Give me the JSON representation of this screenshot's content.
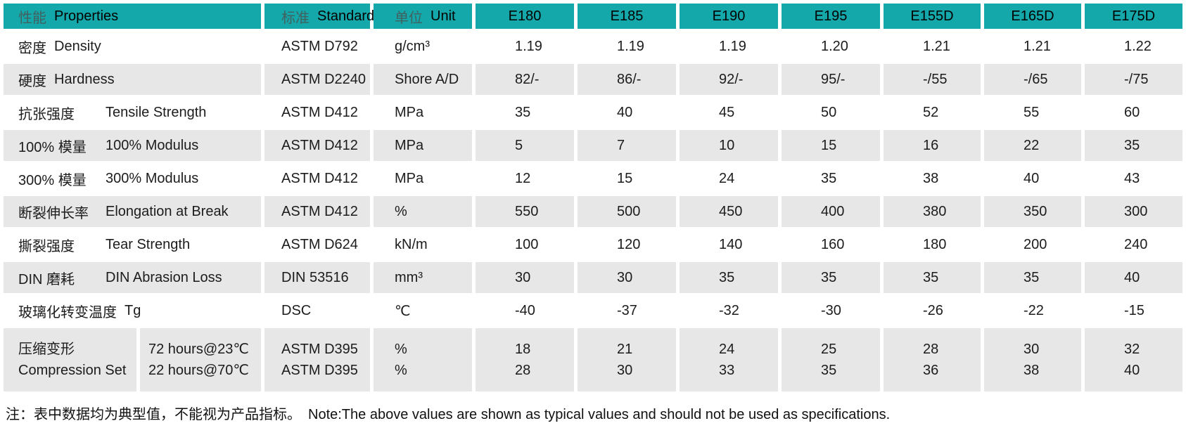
{
  "colors": {
    "header_bg": "#14a8aa",
    "row_shade": "#e7e7e7",
    "page_bg": "#ffffff"
  },
  "table": {
    "header": {
      "properties": {
        "zh": "性能",
        "en": "Properties"
      },
      "standard": {
        "zh": "标准",
        "en": "Standard"
      },
      "unit": {
        "zh": "单位",
        "en": "Unit"
      },
      "models": [
        "E180",
        "E185",
        "E190",
        "E195",
        "E155D",
        "E165D",
        "E175D"
      ]
    },
    "rows": [
      {
        "zh": "密度",
        "en": "Density",
        "tab": false,
        "shade": false,
        "standard": "ASTM D792",
        "unit": "g/cm³",
        "values": [
          "1.19",
          "1.19",
          "1.19",
          "1.20",
          "1.21",
          "1.21",
          "1.22"
        ]
      },
      {
        "zh": "硬度",
        "en": "Hardness",
        "tab": false,
        "shade": true,
        "standard": "ASTM D2240",
        "unit": "Shore A/D",
        "values": [
          "82/-",
          "86/-",
          "92/-",
          "95/-",
          "-/55",
          "-/65",
          "-/75"
        ]
      },
      {
        "zh": "抗张强度",
        "en": "Tensile Strength",
        "tab": true,
        "shade": false,
        "standard": "ASTM D412",
        "unit": "MPa",
        "values": [
          "35",
          "40",
          "45",
          "50",
          "52",
          "55",
          "60"
        ]
      },
      {
        "zh": "100% 模量",
        "en": "100% Modulus",
        "tab": true,
        "shade": true,
        "standard": "ASTM D412",
        "unit": "MPa",
        "values": [
          "5",
          "7",
          "10",
          "15",
          "16",
          "22",
          "35"
        ]
      },
      {
        "zh": "300% 模量",
        "en": "300% Modulus",
        "tab": true,
        "shade": false,
        "standard": "ASTM D412",
        "unit": "MPa",
        "values": [
          "12",
          "15",
          "24",
          "35",
          "38",
          "40",
          "43"
        ]
      },
      {
        "zh": "断裂伸长率",
        "en": "Elongation at Break",
        "tab": true,
        "shade": true,
        "standard": "ASTM D412",
        "unit": "%",
        "values": [
          "550",
          "500",
          "450",
          "400",
          "380",
          "350",
          "300"
        ]
      },
      {
        "zh": "撕裂强度",
        "en": "Tear Strength",
        "tab": true,
        "shade": false,
        "standard": "ASTM D624",
        "unit": "kN/m",
        "values": [
          "100",
          "120",
          "140",
          "160",
          "180",
          "200",
          "240"
        ]
      },
      {
        "zh": "DIN 磨耗",
        "en": "DIN Abrasion Loss",
        "tab": true,
        "shade": true,
        "standard": "DIN 53516",
        "unit": "mm³",
        "values": [
          "30",
          "30",
          "35",
          "35",
          "35",
          "35",
          "40"
        ]
      },
      {
        "zh": "玻璃化转变温度",
        "en": "Tg",
        "tab": false,
        "shade": false,
        "standard": "DSC",
        "unit": "℃",
        "values": [
          "-40",
          "-37",
          "-32",
          "-30",
          "-26",
          "-22",
          "-15"
        ]
      }
    ],
    "compression_row": {
      "zh": "压缩变形",
      "en": "Compression Set",
      "shade": true,
      "conditions": [
        "72 hours@23℃",
        "22 hours@70℃"
      ],
      "standards": [
        "ASTM D395",
        "ASTM D395"
      ],
      "units": [
        "%",
        "%"
      ],
      "values": [
        [
          "18",
          "28"
        ],
        [
          "21",
          "30"
        ],
        [
          "24",
          "33"
        ],
        [
          "25",
          "35"
        ],
        [
          "28",
          "36"
        ],
        [
          "30",
          "38"
        ],
        [
          "32",
          "40"
        ]
      ]
    },
    "note": {
      "zh": "注：表中数据均为典型值，不能视为产品指标。",
      "en": "Note:The above values are shown as typical values and should not be used as specifications."
    }
  }
}
